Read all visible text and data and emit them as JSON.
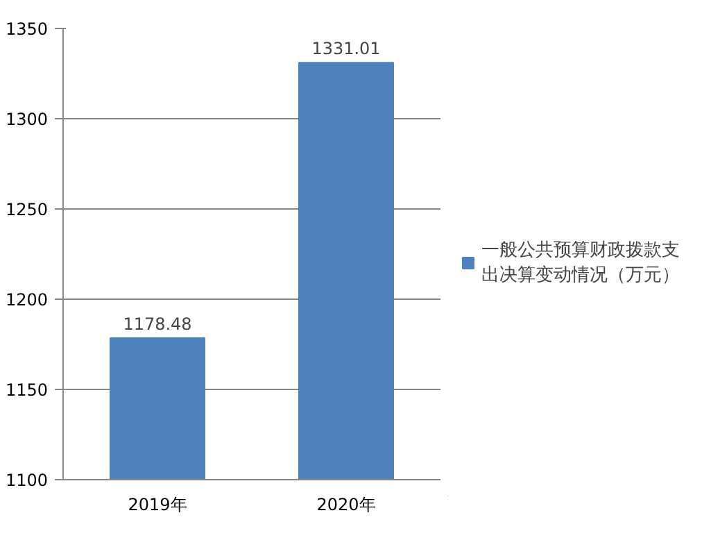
{
  "chart_data": {
    "type": "bar",
    "categories": [
      "2019年",
      "2020年"
    ],
    "series": [
      {
        "name": "一般公共预算财政拨款支出决算变动情况（万元）",
        "color": "#4f81bd",
        "values": [
          1178.48,
          1331.01
        ]
      }
    ],
    "ylim": [
      1100,
      1350
    ],
    "yticks": [
      1100,
      1150,
      1200,
      1250,
      1300,
      1350
    ],
    "grid": "y",
    "legend": "right",
    "data_labels": true
  }
}
